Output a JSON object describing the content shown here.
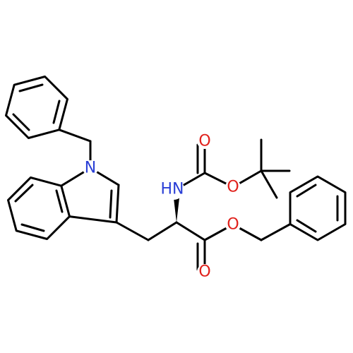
{
  "atoms": [
    {
      "label": "N"
    },
    {
      "label": "HN"
    },
    {
      "label": "O"
    },
    {
      "label": "O"
    },
    {
      "label": "O"
    },
    {
      "label": "O"
    }
  ]
}
